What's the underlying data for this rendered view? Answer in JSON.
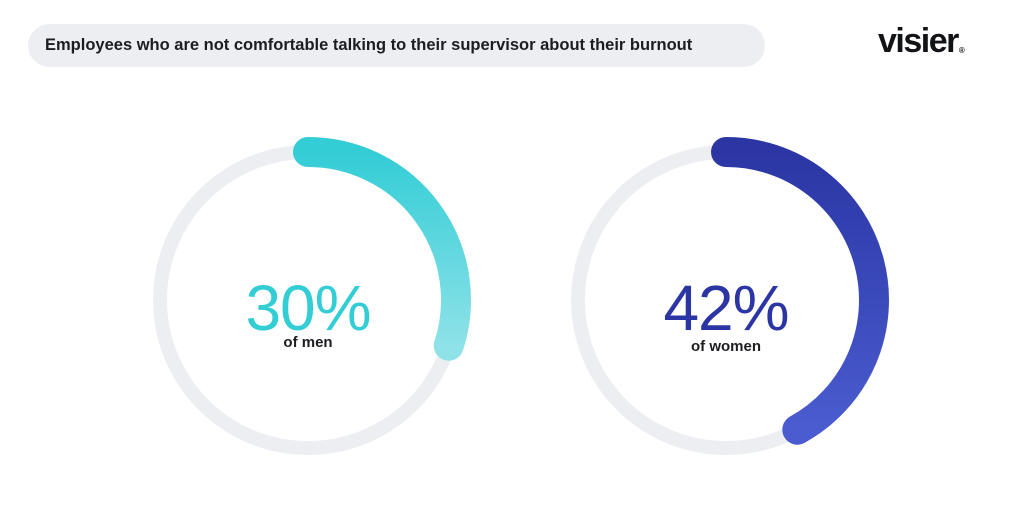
{
  "title": "Employees who are not comfortable talking to their supervisor about their burnout",
  "logo": {
    "text": "visier",
    "mark": "®"
  },
  "colors": {
    "track": "#eceef2",
    "men_start": "#33cdd6",
    "men_end": "#8ee2e8",
    "women_start": "#2b36a4",
    "women_end": "#4a5ccf"
  },
  "chart_data": [
    {
      "type": "pie",
      "value_percent": 30,
      "label": "30%",
      "caption": "of men"
    },
    {
      "type": "pie",
      "value_percent": 42,
      "label": "42%",
      "caption": "of women"
    }
  ]
}
